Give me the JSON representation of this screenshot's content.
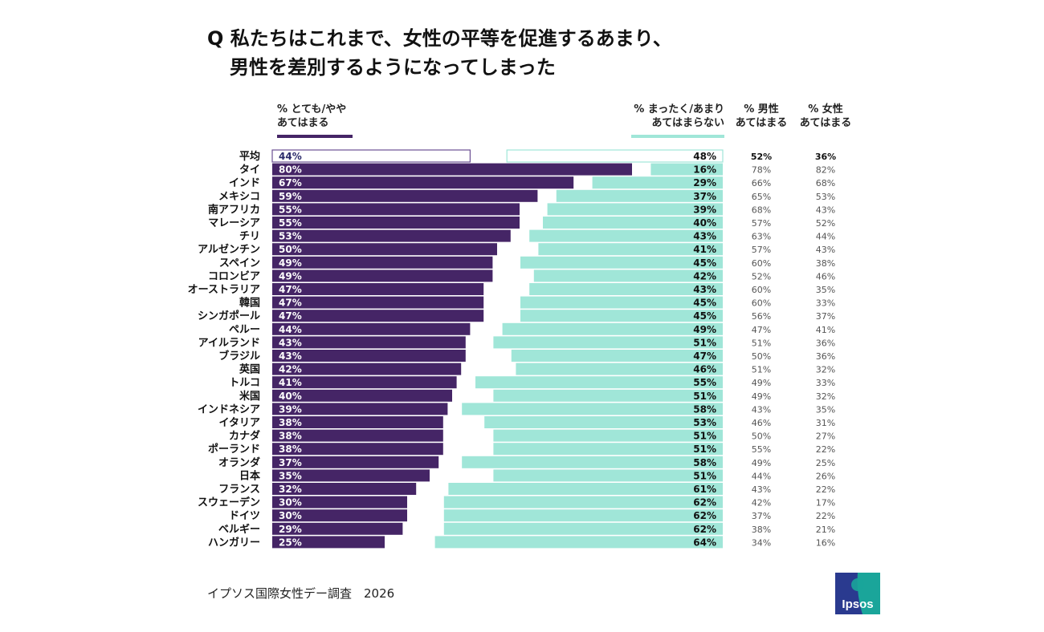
{
  "title": {
    "line1": "Q 私たちはこれまで、女性の平等を促進するあまり、",
    "line2": "男性を差別するようになってしまった"
  },
  "headers": {
    "agree": [
      "% とても/やや",
      "あてはまる"
    ],
    "disagree": [
      "% まったく/あまり",
      "あてはまらない"
    ],
    "male": [
      "% 男性",
      "あてはまる"
    ],
    "female": [
      "% 女性",
      "あてはまる"
    ]
  },
  "colors": {
    "agree": "#452566",
    "disagree": "#a0e6d8",
    "text": "#222222"
  },
  "source": "イプソス国際女性デー調査　2026",
  "logo": "Ipsos",
  "chart_data": {
    "type": "bar",
    "orientation": "horizontal-diverging",
    "categories": [
      "平均",
      "タイ",
      "インド",
      "メキシコ",
      "南アフリカ",
      "マレーシア",
      "チリ",
      "アルゼンチン",
      "スペイン",
      "コロンビア",
      "オーストラリア",
      "韓国",
      "シンガポール",
      "ペルー",
      "アイルランド",
      "ブラジル",
      "英国",
      "トルコ",
      "米国",
      "インドネシア",
      "イタリア",
      "カナダ",
      "ポーランド",
      "オランダ",
      "日本",
      "フランス",
      "スウェーデン",
      "ドイツ",
      "ベルギー",
      "ハンガリー"
    ],
    "series": [
      {
        "name": "% とても/やや あてはまる",
        "values": [
          44,
          80,
          67,
          59,
          55,
          55,
          53,
          50,
          49,
          49,
          47,
          47,
          47,
          44,
          43,
          43,
          42,
          41,
          40,
          39,
          38,
          38,
          38,
          37,
          35,
          32,
          30,
          30,
          29,
          25
        ]
      },
      {
        "name": "% まったく/あまり あてはまらない",
        "values": [
          48,
          16,
          29,
          37,
          39,
          40,
          43,
          41,
          45,
          42,
          43,
          45,
          45,
          49,
          51,
          47,
          46,
          55,
          51,
          58,
          53,
          51,
          51,
          58,
          51,
          61,
          62,
          62,
          62,
          64
        ]
      },
      {
        "name": "% 男性 あてはまる",
        "values": [
          52,
          78,
          66,
          65,
          68,
          57,
          63,
          57,
          60,
          52,
          60,
          60,
          56,
          47,
          51,
          50,
          51,
          49,
          49,
          43,
          46,
          50,
          55,
          49,
          44,
          43,
          42,
          37,
          38,
          34
        ]
      },
      {
        "name": "% 女性 あてはまる",
        "values": [
          36,
          82,
          68,
          53,
          43,
          52,
          44,
          43,
          38,
          46,
          35,
          33,
          37,
          41,
          36,
          36,
          32,
          33,
          32,
          35,
          31,
          27,
          22,
          25,
          26,
          22,
          17,
          22,
          21,
          16
        ]
      }
    ],
    "xlim": [
      0,
      100
    ]
  }
}
